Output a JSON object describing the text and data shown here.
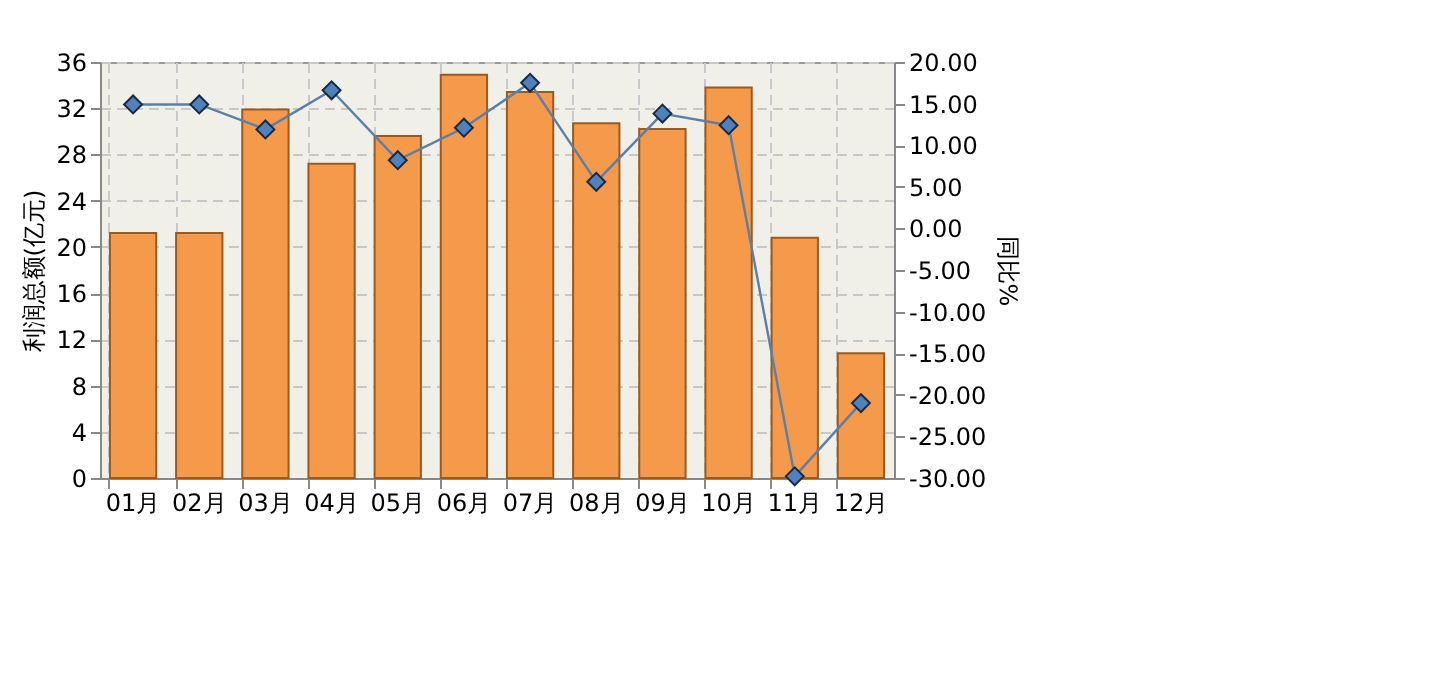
{
  "chart_data": {
    "type": "bar",
    "ylabel": "利润总额(亿元)",
    "y2label": "同比%",
    "categories": [
      "01月",
      "02月",
      "03月",
      "04月",
      "05月",
      "06月",
      "07月",
      "08月",
      "09月",
      "10月",
      "11月",
      "12月"
    ],
    "series": [
      {
        "color": "#f5994a",
        "values": [
          21.2,
          21.2,
          31.9,
          27.2,
          29.6,
          34.9,
          33.4,
          30.7,
          30.2,
          33.8,
          20.8,
          10.8
        ]
      },
      {
        "type": "line",
        "axis": "y2",
        "color": "#5b7fa8",
        "marker": "diamond",
        "line_style": "solid",
        "values": [
          14.9,
          14.9,
          11.9,
          16.6,
          8.2,
          12.1,
          17.5,
          5.6,
          13.8,
          12.4,
          -29.8,
          -21.0
        ]
      }
    ],
    "ylim": [
      0,
      36
    ],
    "yticks": [
      0,
      4,
      8,
      12,
      16,
      20,
      24,
      28,
      32,
      36
    ],
    "y2lim": [
      -30,
      20
    ],
    "y2ticks": [
      {
        "value": -30,
        "label": "-30.00"
      },
      {
        "value": -25,
        "label": "-25.00"
      },
      {
        "value": -20,
        "label": "-20.00"
      },
      {
        "value": -15,
        "label": "-15.00"
      },
      {
        "value": -10,
        "label": "-10.00"
      },
      {
        "value": -5,
        "label": "-5.00"
      },
      {
        "value": 0,
        "label": "0.00"
      },
      {
        "value": 5,
        "label": "5.00"
      },
      {
        "value": 10,
        "label": "10.00"
      },
      {
        "value": 15,
        "label": "15.00"
      },
      {
        "value": 20,
        "label": "20.00"
      }
    ],
    "grid": true
  }
}
